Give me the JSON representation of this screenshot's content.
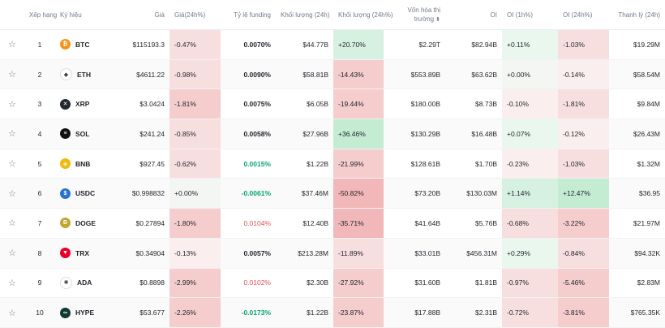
{
  "headers": {
    "rank": "Xếp hạng",
    "symbol": "Ký hiệu",
    "price": "Giá",
    "price_24h": "Giá(24h%)",
    "funding": "Tỷ lệ funding",
    "volume": "Khối lượng (24h)",
    "volume_pct": "Khối lượng (24h%)",
    "market_cap_1": "Vốn hóa thị",
    "market_cap_2": "trường",
    "oi": "OI",
    "oi_1h": "OI (1h%)",
    "oi_24h": "OI (24h%)",
    "liquidation": "Thanh lý (24h)"
  },
  "rows": [
    {
      "rank": "1",
      "symbol": "BTC",
      "icon": "bitcoin-icon",
      "color": "#f7931a",
      "glyph": "₿",
      "price": "$115193.3",
      "price_24h": "-0.47%",
      "funding": "0.0070%",
      "volume": "$44.77B",
      "volume_pct": "+20.70%",
      "market_cap": "$2.29T",
      "oi": "$82.94B",
      "oi_1h": "+0.11%",
      "oi_24h": "-1.03%",
      "liquidation": "$19.29M"
    },
    {
      "rank": "2",
      "symbol": "ETH",
      "icon": "ethereum-icon",
      "color": "#ffffff",
      "glyph": "◆",
      "price": "$4611.22",
      "price_24h": "-0.98%",
      "funding": "0.0090%",
      "volume": "$58.81B",
      "volume_pct": "-14.43%",
      "market_cap": "$553.89B",
      "oi": "$63.62B",
      "oi_1h": "+0.00%",
      "oi_24h": "-0.14%",
      "liquidation": "$58.54M"
    },
    {
      "rank": "3",
      "symbol": "XRP",
      "icon": "xrp-icon",
      "color": "#23292f",
      "glyph": "✕",
      "price": "$3.0424",
      "price_24h": "-1.81%",
      "funding": "0.0075%",
      "volume": "$6.05B",
      "volume_pct": "-19.44%",
      "market_cap": "$180.00B",
      "oi": "$8.73B",
      "oi_1h": "-0.10%",
      "oi_24h": "-1.81%",
      "liquidation": "$9.84M"
    },
    {
      "rank": "4",
      "symbol": "SOL",
      "icon": "solana-icon",
      "color": "#111111",
      "glyph": "≡",
      "price": "$241.24",
      "price_24h": "-0.85%",
      "funding": "0.0058%",
      "volume": "$27.96B",
      "volume_pct": "+36.46%",
      "market_cap": "$130.29B",
      "oi": "$16.48B",
      "oi_1h": "+0.07%",
      "oi_24h": "-0.12%",
      "liquidation": "$26.43M"
    },
    {
      "rank": "5",
      "symbol": "BNB",
      "icon": "bnb-icon",
      "color": "#f0b90b",
      "glyph": "◈",
      "price": "$927.45",
      "price_24h": "-0.62%",
      "funding": "0.0015%",
      "volume": "$1.22B",
      "volume_pct": "-21.99%",
      "market_cap": "$128.61B",
      "oi": "$1.70B",
      "oi_1h": "-0.23%",
      "oi_24h": "-1.03%",
      "liquidation": "$1.32M"
    },
    {
      "rank": "6",
      "symbol": "USDC",
      "icon": "usdc-icon",
      "color": "#2775ca",
      "glyph": "$",
      "price": "$0.998832",
      "price_24h": "+0.00%",
      "funding": "-0.0061%",
      "volume": "$37.46M",
      "volume_pct": "-50.82%",
      "market_cap": "$73.20B",
      "oi": "$130.03M",
      "oi_1h": "+1.14%",
      "oi_24h": "+12.47%",
      "liquidation": "$36.95"
    },
    {
      "rank": "7",
      "symbol": "DOGE",
      "icon": "dogecoin-icon",
      "color": "#c2a633",
      "glyph": "Ð",
      "price": "$0.27894",
      "price_24h": "-1.80%",
      "funding": "0.0104%",
      "volume": "$12.40B",
      "volume_pct": "-35.71%",
      "market_cap": "$41.64B",
      "oi": "$5.76B",
      "oi_1h": "-0.68%",
      "oi_24h": "-3.22%",
      "liquidation": "$21.97M"
    },
    {
      "rank": "8",
      "symbol": "TRX",
      "icon": "tron-icon",
      "color": "#eb0029",
      "glyph": "▼",
      "price": "$0.34904",
      "price_24h": "-0.13%",
      "funding": "0.0057%",
      "volume": "$213.28M",
      "volume_pct": "-11.89%",
      "market_cap": "$33.01B",
      "oi": "$456.31M",
      "oi_1h": "+0.29%",
      "oi_24h": "-0.84%",
      "liquidation": "$94.32K"
    },
    {
      "rank": "9",
      "symbol": "ADA",
      "icon": "cardano-icon",
      "color": "#ffffff",
      "glyph": "✺",
      "price": "$0.8898",
      "price_24h": "-2.99%",
      "funding": "0.0102%",
      "volume": "$2.30B",
      "volume_pct": "-27.92%",
      "market_cap": "$31.60B",
      "oi": "$1.81B",
      "oi_1h": "-0.97%",
      "oi_24h": "-5.46%",
      "liquidation": "$2.83M"
    },
    {
      "rank": "10",
      "symbol": "HYPE",
      "icon": "hyperliquid-icon",
      "color": "#0f3933",
      "glyph": "∞",
      "price": "$53.677",
      "price_24h": "-2.26%",
      "funding": "-0.0173%",
      "volume": "$1.22B",
      "volume_pct": "-23.87%",
      "market_cap": "$17.88B",
      "oi": "$2.31B",
      "oi_1h": "-0.72%",
      "oi_24h": "-3.81%",
      "liquidation": "$765.35K"
    }
  ],
  "cell_styles": {
    "price_24h": [
      "h-red-2",
      "h-red-2",
      "h-red-3",
      "h-red-2",
      "h-red-2",
      "h-neu",
      "h-red-3",
      "h-red-1",
      "h-red-3",
      "h-red-3"
    ],
    "volume_pct": [
      "h-grn-2",
      "h-red-3",
      "h-red-3",
      "h-grn-3",
      "h-red-3",
      "h-red-4",
      "h-red-4",
      "h-red-2",
      "h-red-3",
      "h-red-3"
    ],
    "oi_1h": [
      "h-grn-1",
      "h-neu",
      "h-red-1",
      "h-grn-1",
      "h-red-1",
      "h-grn-2",
      "h-red-2",
      "h-grn-1",
      "h-red-2",
      "h-red-2"
    ],
    "oi_24h": [
      "h-red-2",
      "h-red-1",
      "h-red-2",
      "h-red-1",
      "h-red-2",
      "h-grn-3",
      "h-red-3",
      "h-red-2",
      "h-red-3",
      "h-red-3"
    ],
    "funding": [
      "bold",
      "bold",
      "bold",
      "bold",
      "bold green",
      "bold green",
      "red",
      "bold",
      "red",
      "bold green"
    ]
  },
  "colors": {
    "green": "#03a66d",
    "red": "#e04f5c",
    "header_text": "#707a8a"
  }
}
